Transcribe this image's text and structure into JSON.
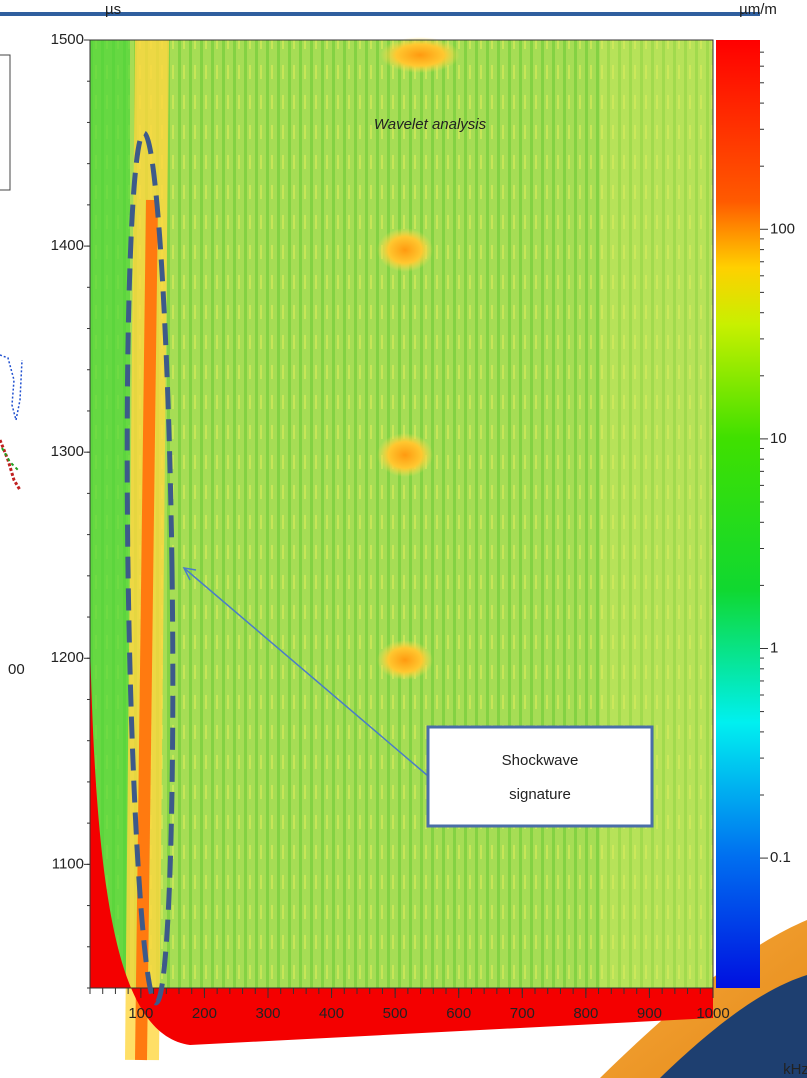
{
  "chart_data": {
    "type": "heatmap",
    "title": "Wavelet analysis",
    "y_unit": "µs",
    "colorbar_unit": "µm/m",
    "x_unit": "kHz",
    "xlim": [
      20,
      1000
    ],
    "xticks": [
      100,
      200,
      300,
      400,
      500,
      600,
      700,
      800,
      900,
      1000
    ],
    "ylim": [
      1040,
      1500
    ],
    "yticks": [
      1100,
      1200,
      1300,
      1400,
      1500
    ],
    "clim": [
      0.024,
      800
    ],
    "color_log": true,
    "cticks": [
      {
        "value": 0.1,
        "label": "0.1"
      },
      1,
      10,
      100
    ],
    "annotation": [
      "Shockwave",
      "signature"
    ]
  },
  "left_panel": {
    "label": "00"
  }
}
